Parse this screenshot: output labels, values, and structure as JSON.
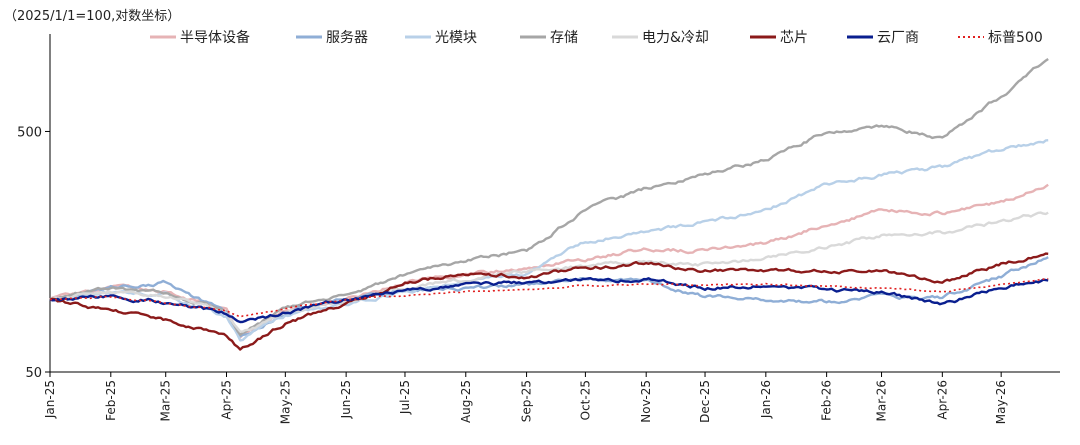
{
  "chart_data": {
    "type": "line",
    "note": "（2025/1/1=100,对数坐标）",
    "yscale": "log",
    "ylim": [
      50,
      1200
    ],
    "yticks": [
      50,
      500
    ],
    "xlim": [
      "2025-01-01",
      "2026-05-31"
    ],
    "xticks": [
      "Jan-25",
      "Feb-25",
      "Mar-25",
      "Apr-25",
      "May-25",
      "Jun-25",
      "Jul-25",
      "Aug-25",
      "Sep-25",
      "Oct-25",
      "Nov-25",
      "Dec-25",
      "Jan-26",
      "Feb-26",
      "Mar-26",
      "Apr-26",
      "May-26"
    ],
    "grid": false,
    "legend_position": "top",
    "series": [
      {
        "name": "半导体设备",
        "color": "#e6b3b5",
        "dash": false,
        "x": [
          "2025-01-01",
          "2025-02-01",
          "2025-03-01",
          "2025-04-01",
          "2025-04-08",
          "2025-05-01",
          "2025-06-01",
          "2025-07-01",
          "2025-08-01",
          "2025-09-01",
          "2025-10-01",
          "2025-11-01",
          "2025-12-01",
          "2026-01-01",
          "2026-02-01",
          "2026-03-01",
          "2026-04-01",
          "2026-05-01",
          "2026-05-25"
        ],
        "values": [
          100,
          112,
          108,
          90,
          70,
          90,
          100,
          118,
          128,
          135,
          148,
          162,
          160,
          172,
          205,
          235,
          230,
          255,
          300
        ]
      },
      {
        "name": "服务器",
        "color": "#8faed6",
        "dash": false,
        "x": [
          "2025-01-01",
          "2025-02-01",
          "2025-03-01",
          "2025-04-01",
          "2025-04-08",
          "2025-05-01",
          "2025-06-01",
          "2025-07-01",
          "2025-08-01",
          "2025-09-01",
          "2025-10-01",
          "2025-11-01",
          "2025-12-01",
          "2026-01-01",
          "2026-02-01",
          "2026-03-01",
          "2026-04-01",
          "2026-05-01",
          "2026-05-25"
        ],
        "values": [
          100,
          112,
          118,
          88,
          70,
          88,
          100,
          110,
          112,
          115,
          122,
          118,
          103,
          100,
          98,
          103,
          102,
          125,
          150
        ]
      },
      {
        "name": "光模块",
        "color": "#b8d0e8",
        "dash": false,
        "x": [
          "2025-01-01",
          "2025-02-01",
          "2025-03-01",
          "2025-04-01",
          "2025-04-08",
          "2025-05-01",
          "2025-06-01",
          "2025-07-01",
          "2025-08-01",
          "2025-09-01",
          "2025-10-01",
          "2025-11-01",
          "2025-12-01",
          "2026-01-01",
          "2026-02-01",
          "2026-03-01",
          "2026-04-01",
          "2026-05-01",
          "2026-05-25"
        ],
        "values": [
          100,
          108,
          105,
          84,
          68,
          86,
          96,
          108,
          118,
          128,
          175,
          190,
          210,
          235,
          300,
          330,
          355,
          420,
          460
        ]
      },
      {
        "name": "存储",
        "color": "#a6a6a6",
        "dash": false,
        "x": [
          "2025-01-01",
          "2025-02-01",
          "2025-03-01",
          "2025-04-01",
          "2025-04-08",
          "2025-05-01",
          "2025-06-01",
          "2025-07-01",
          "2025-08-01",
          "2025-09-01",
          "2025-10-01",
          "2025-11-01",
          "2025-12-01",
          "2026-01-01",
          "2026-02-01",
          "2026-03-01",
          "2026-04-01",
          "2026-05-01",
          "2026-05-25"
        ],
        "values": [
          100,
          112,
          108,
          88,
          72,
          92,
          104,
          126,
          145,
          160,
          235,
          290,
          330,
          380,
          500,
          530,
          470,
          700,
          1000
        ]
      },
      {
        "name": "电力&冷却",
        "color": "#d9d9d9",
        "dash": false,
        "x": [
          "2025-01-01",
          "2025-02-01",
          "2025-03-01",
          "2025-04-01",
          "2025-04-08",
          "2025-05-01",
          "2025-06-01",
          "2025-07-01",
          "2025-08-01",
          "2025-09-01",
          "2025-10-01",
          "2025-11-01",
          "2025-12-01",
          "2026-01-01",
          "2026-02-01",
          "2026-03-01",
          "2026-04-01",
          "2026-05-01",
          "2026-05-25"
        ],
        "values": [
          100,
          108,
          104,
          88,
          72,
          88,
          98,
          112,
          122,
          130,
          138,
          145,
          140,
          148,
          165,
          185,
          190,
          210,
          230
        ]
      },
      {
        "name": "芯片",
        "color": "#8b1a1a",
        "dash": false,
        "x": [
          "2025-01-01",
          "2025-02-01",
          "2025-03-01",
          "2025-04-01",
          "2025-04-08",
          "2025-05-01",
          "2025-06-01",
          "2025-07-01",
          "2025-08-01",
          "2025-09-01",
          "2025-10-01",
          "2025-11-01",
          "2025-12-01",
          "2026-01-01",
          "2026-02-01",
          "2026-03-01",
          "2026-04-01",
          "2026-05-01",
          "2026-05-25"
        ],
        "values": [
          100,
          90,
          82,
          70,
          62,
          80,
          96,
          118,
          128,
          125,
          135,
          142,
          132,
          132,
          130,
          132,
          118,
          140,
          155
        ]
      },
      {
        "name": "云厂商",
        "color": "#0a1f8f",
        "dash": false,
        "x": [
          "2025-01-01",
          "2025-02-01",
          "2025-03-01",
          "2025-04-01",
          "2025-04-08",
          "2025-05-01",
          "2025-06-01",
          "2025-07-01",
          "2025-08-01",
          "2025-09-01",
          "2025-10-01",
          "2025-11-01",
          "2025-12-01",
          "2026-01-01",
          "2026-02-01",
          "2026-03-01",
          "2026-04-01",
          "2026-05-01",
          "2026-05-25"
        ],
        "values": [
          100,
          103,
          98,
          88,
          80,
          88,
          100,
          110,
          115,
          118,
          120,
          122,
          112,
          115,
          110,
          108,
          95,
          112,
          120
        ]
      },
      {
        "name": "标普500",
        "color": "#e02020",
        "dash": true,
        "x": [
          "2025-01-01",
          "2025-02-01",
          "2025-03-01",
          "2025-04-01",
          "2025-04-08",
          "2025-05-01",
          "2025-06-01",
          "2025-07-01",
          "2025-08-01",
          "2025-09-01",
          "2025-10-01",
          "2025-11-01",
          "2025-12-01",
          "2026-01-01",
          "2026-02-01",
          "2026-03-01",
          "2026-04-01",
          "2026-05-01",
          "2026-05-25"
        ],
        "values": [
          100,
          103,
          97,
          90,
          85,
          92,
          100,
          104,
          108,
          110,
          114,
          116,
          115,
          116,
          114,
          112,
          108,
          115,
          122
        ]
      }
    ]
  }
}
